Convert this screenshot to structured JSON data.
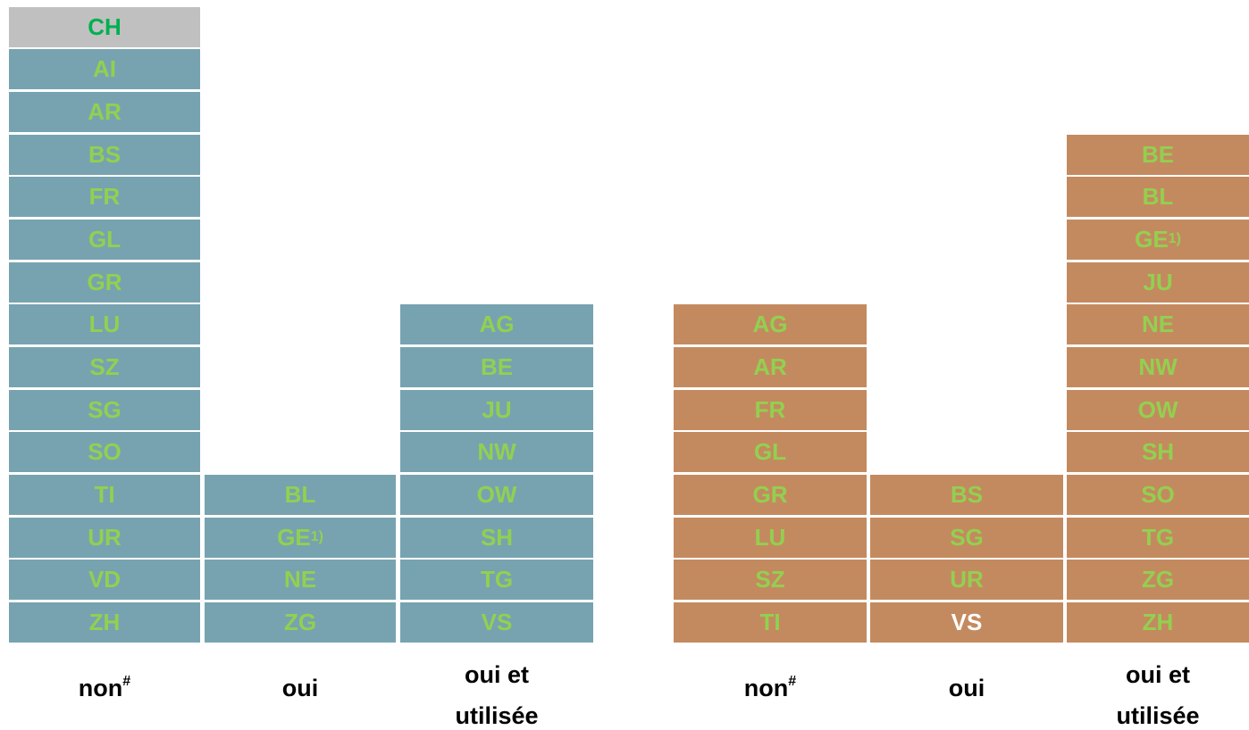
{
  "groups": [
    {
      "fill": "#77a3b0",
      "columns": [
        {
          "label": {
            "text": "non",
            "sup": "#"
          },
          "cells": [
            {
              "text": "CH",
              "fill": "#c0c0c0",
              "color": "#00b050"
            },
            {
              "text": "AI"
            },
            {
              "text": "AR"
            },
            {
              "text": "BS"
            },
            {
              "text": "FR"
            },
            {
              "text": "GL"
            },
            {
              "text": "GR"
            },
            {
              "text": "LU"
            },
            {
              "text": "SZ"
            },
            {
              "text": "SG"
            },
            {
              "text": "SO"
            },
            {
              "text": "TI"
            },
            {
              "text": "UR"
            },
            {
              "text": "VD"
            },
            {
              "text": "ZH"
            }
          ]
        },
        {
          "label": {
            "text": "oui"
          },
          "cells": [
            {
              "text": "BL"
            },
            {
              "text": "GE",
              "sup": "1)"
            },
            {
              "text": "NE"
            },
            {
              "text": "ZG"
            }
          ]
        },
        {
          "label": {
            "lines": [
              "oui et",
              "utilisée"
            ]
          },
          "cells": [
            {
              "text": "AG"
            },
            {
              "text": "BE"
            },
            {
              "text": "JU"
            },
            {
              "text": "NW"
            },
            {
              "text": "OW"
            },
            {
              "text": "SH"
            },
            {
              "text": "TG"
            },
            {
              "text": "VS"
            }
          ]
        }
      ]
    },
    {
      "fill": "#c48a5f",
      "columns": [
        {
          "label": {
            "text": "non",
            "sup": "#"
          },
          "cells": [
            {
              "text": "AG"
            },
            {
              "text": "AR"
            },
            {
              "text": "FR"
            },
            {
              "text": "GL"
            },
            {
              "text": "GR"
            },
            {
              "text": "LU"
            },
            {
              "text": "SZ"
            },
            {
              "text": "TI"
            }
          ]
        },
        {
          "label": {
            "text": "oui"
          },
          "cells": [
            {
              "text": "BS"
            },
            {
              "text": "SG"
            },
            {
              "text": "UR"
            },
            {
              "text": "VS",
              "color": "#ffffff"
            }
          ]
        },
        {
          "label": {
            "lines": [
              "oui et",
              "utilisée"
            ]
          },
          "cells": [
            {
              "text": "BE"
            },
            {
              "text": "BL"
            },
            {
              "text": "GE",
              "sup": "1)"
            },
            {
              "text": "JU"
            },
            {
              "text": "NE"
            },
            {
              "text": "NW"
            },
            {
              "text": "OW"
            },
            {
              "text": "SH"
            },
            {
              "text": "SO"
            },
            {
              "text": "TG"
            },
            {
              "text": "ZG"
            },
            {
              "text": "ZH"
            }
          ]
        }
      ]
    }
  ]
}
